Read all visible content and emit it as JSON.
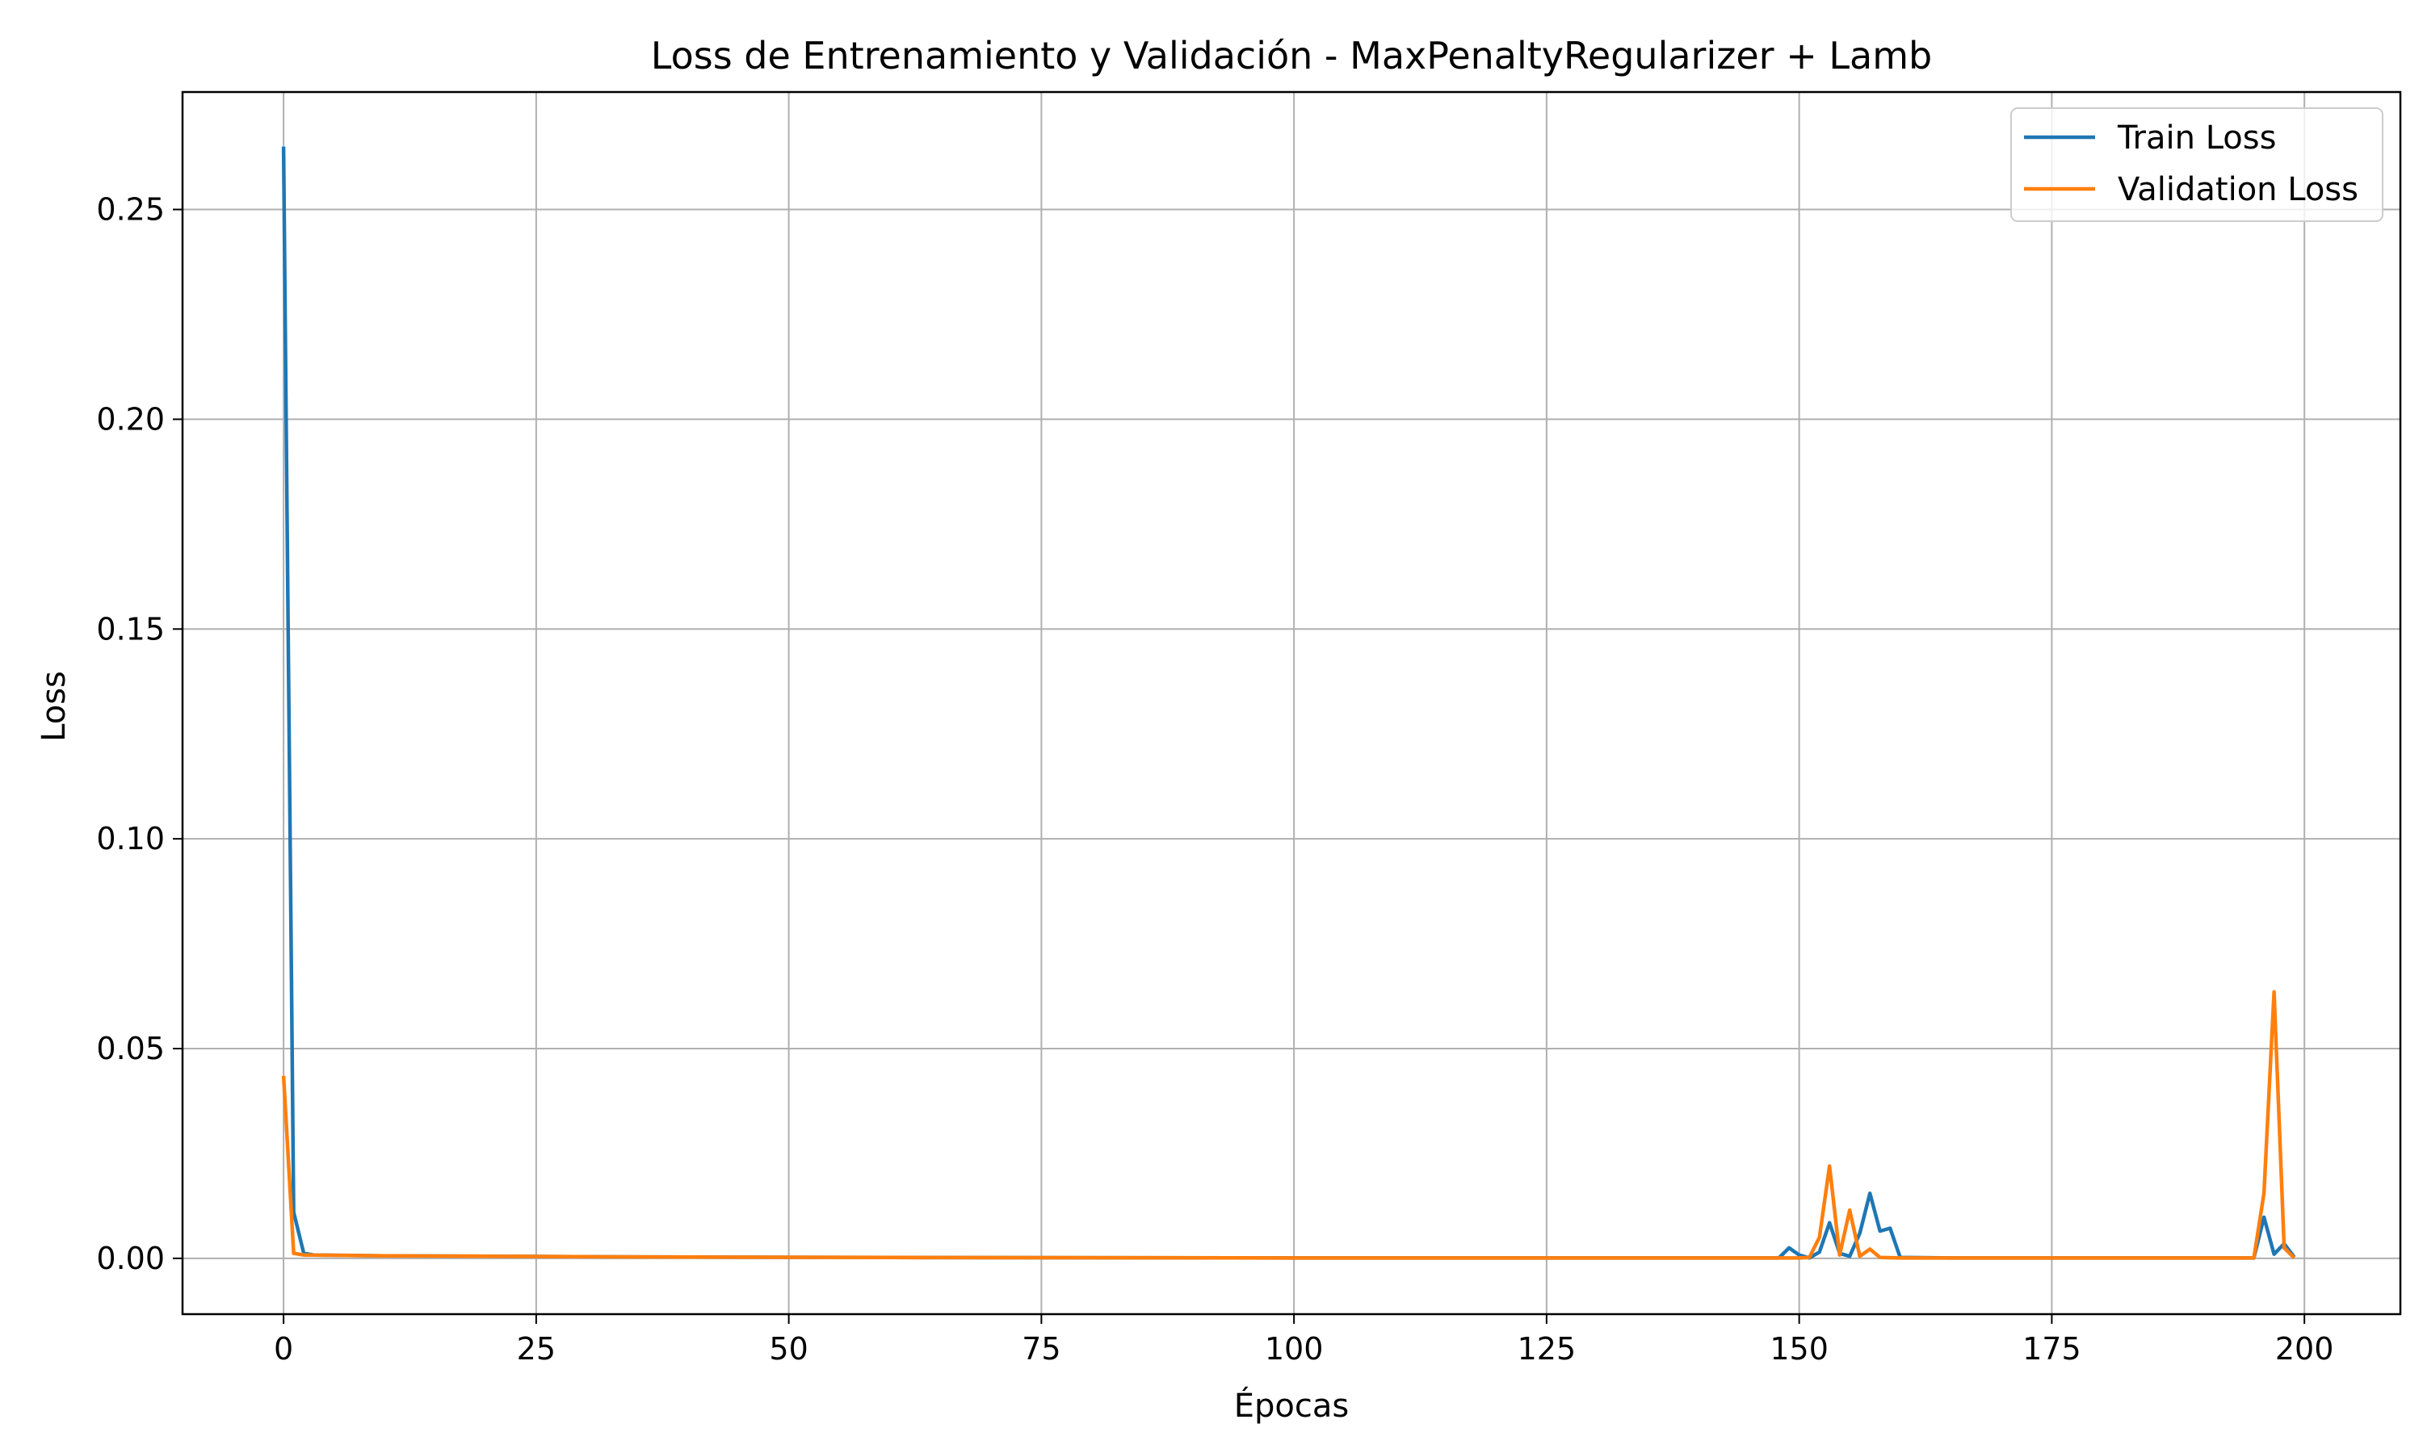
{
  "chart_data": {
    "type": "line",
    "title": "Loss de Entrenamiento y Validación - MaxPenaltyRegularizer + Lamb",
    "xlabel": "Épocas",
    "ylabel": "Loss",
    "xlim": [
      -10,
      209.5
    ],
    "ylim": [
      -0.0133,
      0.278
    ],
    "xticks": [
      0,
      25,
      50,
      75,
      100,
      125,
      150,
      175,
      200
    ],
    "yticks": [
      0.0,
      0.05,
      0.1,
      0.15,
      0.2,
      0.25
    ],
    "xtick_labels": [
      "0",
      "25",
      "50",
      "75",
      "100",
      "125",
      "150",
      "175",
      "200"
    ],
    "ytick_labels": [
      "0.00",
      "0.05",
      "0.10",
      "0.15",
      "0.20",
      "0.25"
    ],
    "grid": true,
    "legend_position": "top-right",
    "series": [
      {
        "name": "Train Loss",
        "color": "#1f77b4",
        "points": [
          [
            0,
            0.265
          ],
          [
            1,
            0.011
          ],
          [
            2,
            0.0012
          ],
          [
            3,
            0.0008
          ],
          [
            10,
            0.0006
          ],
          [
            20,
            0.0005
          ],
          [
            40,
            0.0003
          ],
          [
            60,
            0.0002
          ],
          [
            100,
            0.0001
          ],
          [
            148,
            0.0001
          ],
          [
            149,
            0.0025
          ],
          [
            150,
            0.0008
          ],
          [
            151,
            0.0001
          ],
          [
            152,
            0.0015
          ],
          [
            153,
            0.0085
          ],
          [
            154,
            0.0012
          ],
          [
            155,
            0.0005
          ],
          [
            156,
            0.006
          ],
          [
            157,
            0.0155
          ],
          [
            158,
            0.0065
          ],
          [
            159,
            0.0072
          ],
          [
            160,
            0.0002
          ],
          [
            165,
            0.0001
          ],
          [
            195,
            0.0001
          ],
          [
            196,
            0.0098
          ],
          [
            197,
            0.001
          ],
          [
            198,
            0.0035
          ],
          [
            199,
            0.0003
          ]
        ]
      },
      {
        "name": "Validation Loss",
        "color": "#ff7f0e",
        "points": [
          [
            0,
            0.0435
          ],
          [
            1,
            0.0012
          ],
          [
            2,
            0.0008
          ],
          [
            10,
            0.0006
          ],
          [
            20,
            0.0005
          ],
          [
            40,
            0.0003
          ],
          [
            60,
            0.0002
          ],
          [
            100,
            0.0001
          ],
          [
            150,
            0.0001
          ],
          [
            151,
            0.0002
          ],
          [
            152,
            0.005
          ],
          [
            153,
            0.022
          ],
          [
            154,
            0.0008
          ],
          [
            155,
            0.0115
          ],
          [
            156,
            0.0005
          ],
          [
            157,
            0.0022
          ],
          [
            158,
            0.0002
          ],
          [
            160,
            0.0001
          ],
          [
            195,
            0.0001
          ],
          [
            196,
            0.0155
          ],
          [
            197,
            0.0635
          ],
          [
            198,
            0.0025
          ],
          [
            199,
            0.0001
          ]
        ]
      }
    ]
  }
}
